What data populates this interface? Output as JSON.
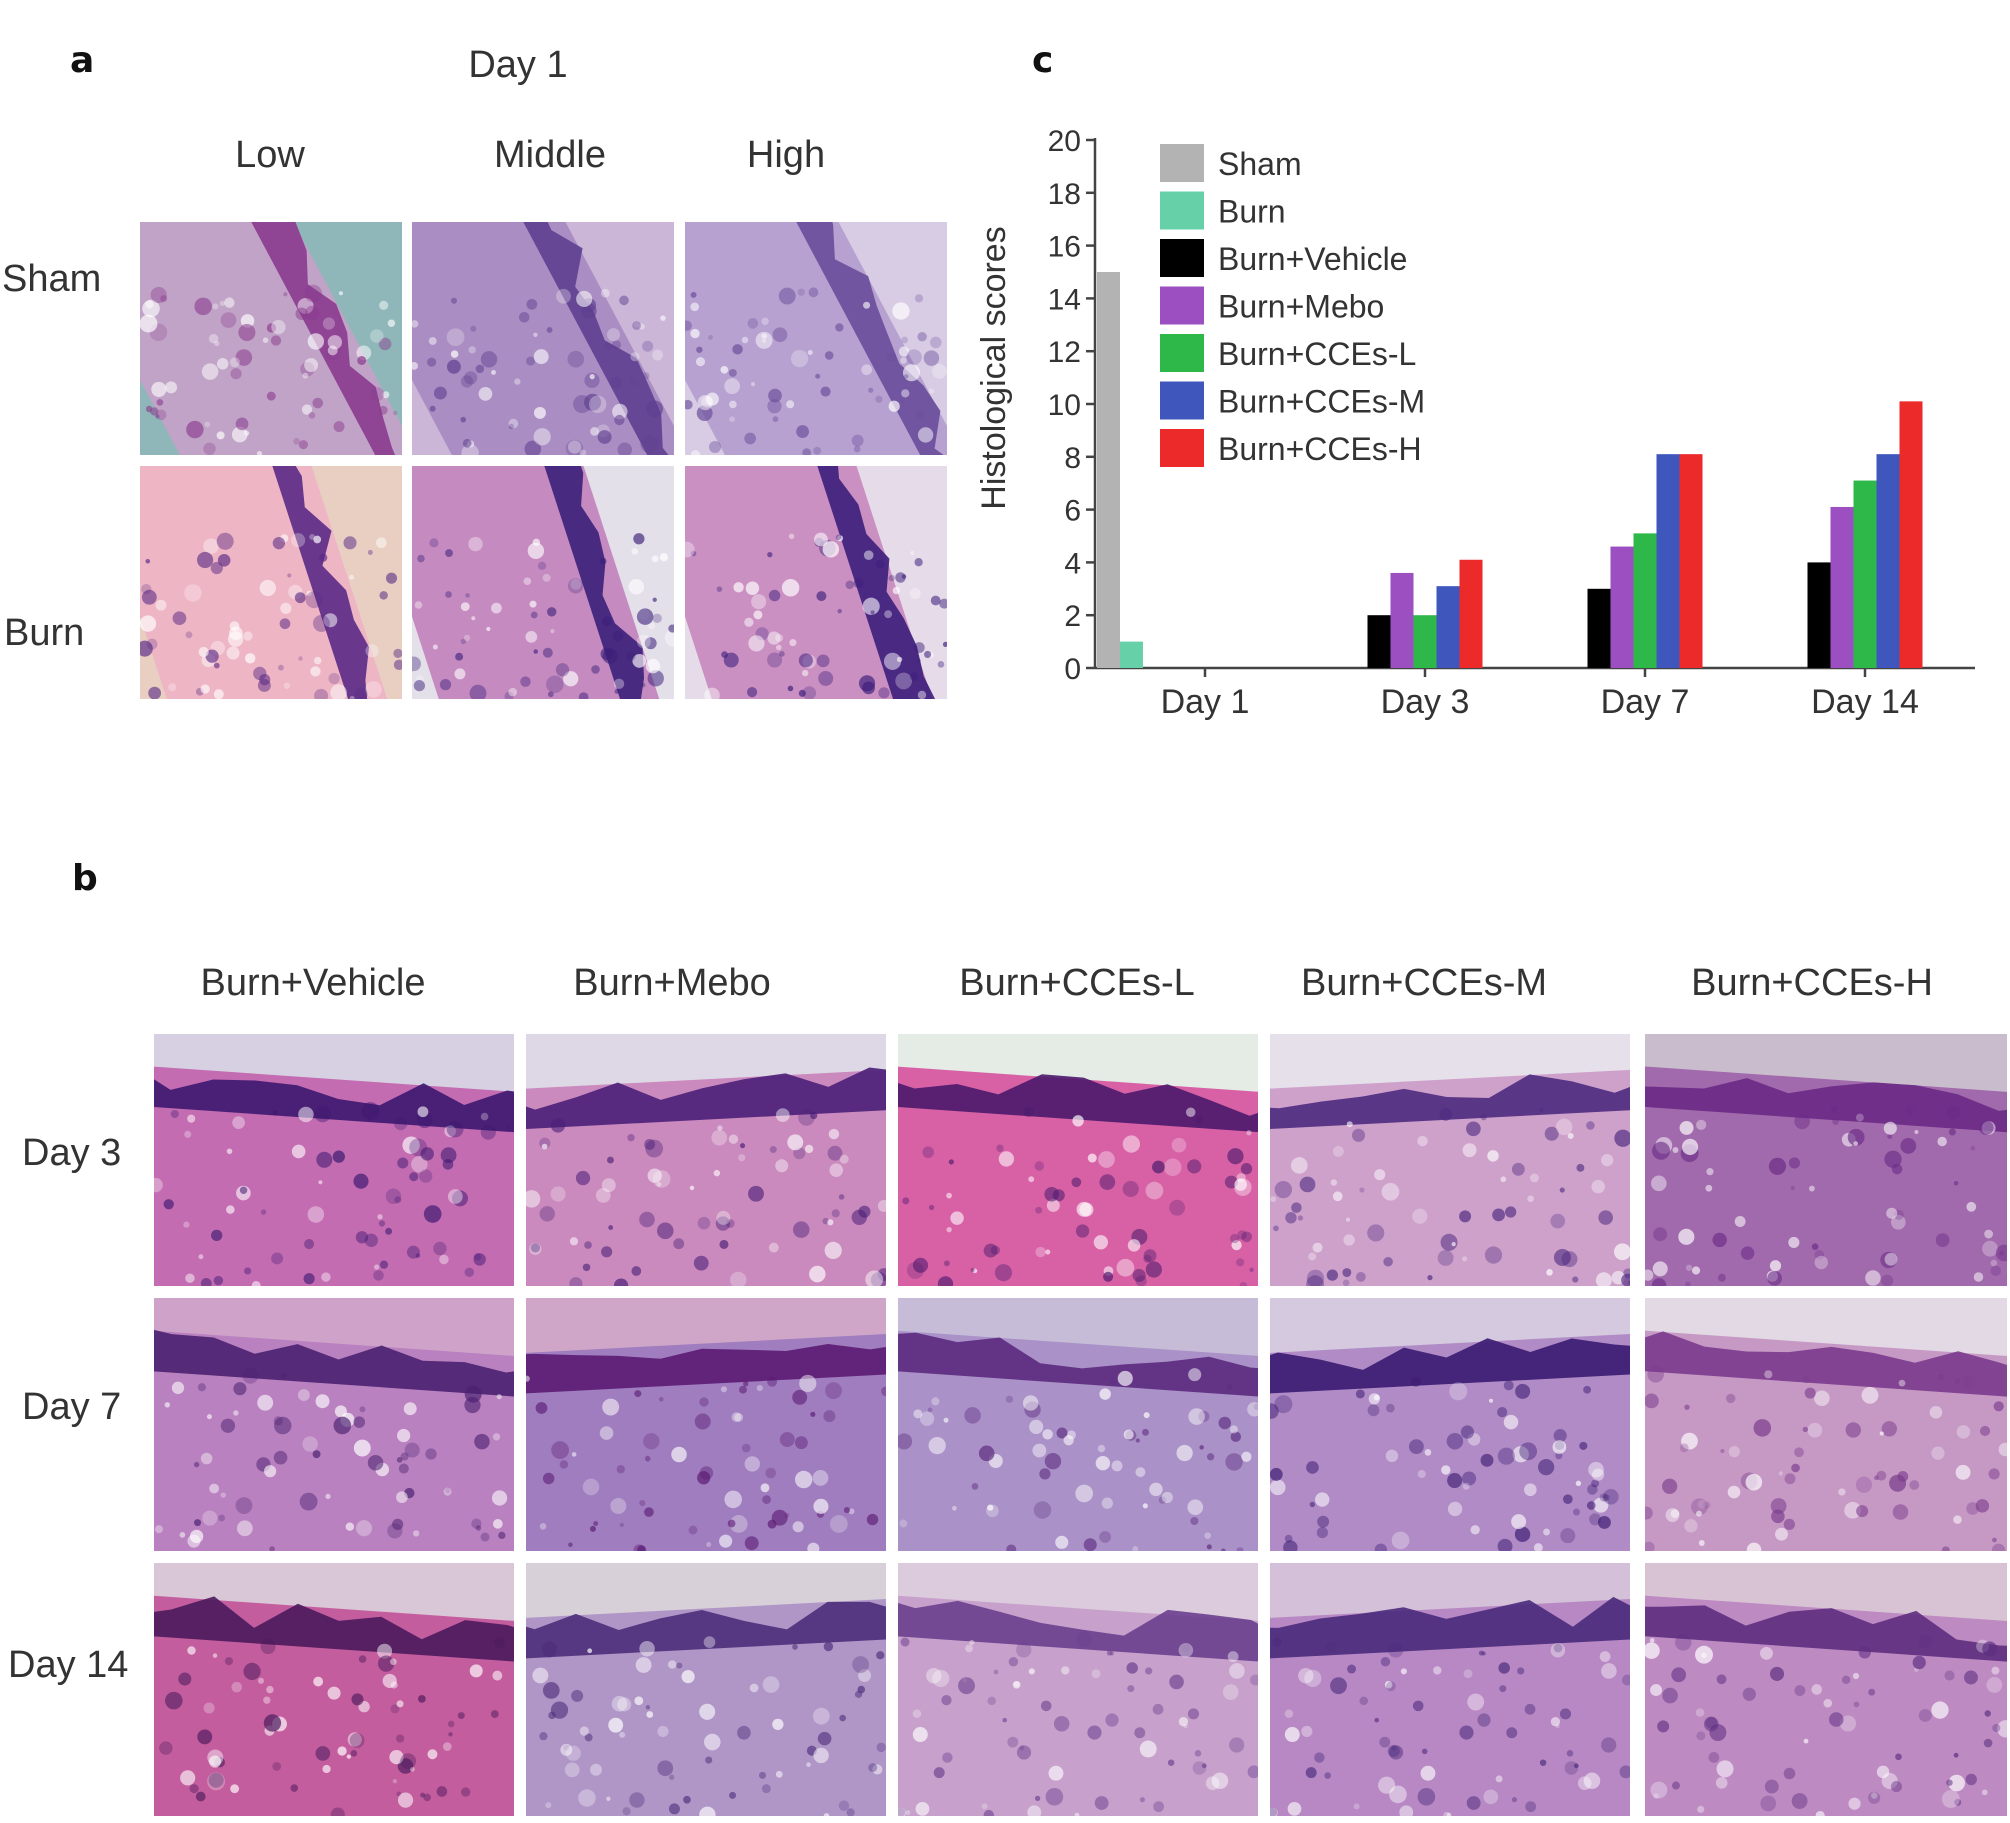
{
  "panels": {
    "a": {
      "letter": "a",
      "heading": "Day 1",
      "columns": [
        "Low",
        "Middle",
        "High"
      ],
      "rows": [
        "Sham",
        "Burn"
      ]
    },
    "b": {
      "letter": "b",
      "columns": [
        "Burn+Vehicle",
        "Burn+Mebo",
        "Burn+CCEs-L",
        "Burn+CCEs-M",
        "Burn+CCEs-H"
      ],
      "rows": [
        "Day 3",
        "Day 7",
        "Day 14"
      ]
    },
    "c": {
      "letter": "c"
    }
  },
  "chart_data": {
    "type": "bar",
    "title": "",
    "xlabel": "",
    "ylabel": "Histological scores",
    "ylim": [
      0,
      20
    ],
    "yticks": [
      "0",
      "2",
      "4",
      "6",
      "8",
      "10",
      "12",
      "14",
      "16",
      "18",
      "20"
    ],
    "categories": [
      "Day 1",
      "Day 3",
      "Day 7",
      "Day 14"
    ],
    "grid": false,
    "legend_position": "top-left",
    "series": [
      {
        "name": "Sham",
        "color": "#b3b3b3",
        "values": [
          15,
          0,
          0,
          0
        ]
      },
      {
        "name": "Burn",
        "color": "#66d1a8",
        "values": [
          1,
          0,
          0,
          0
        ]
      },
      {
        "name": "Burn+Vehicle",
        "color": "#000000",
        "values": [
          0,
          2,
          3,
          4
        ]
      },
      {
        "name": "Burn+Mebo",
        "color": "#9b4fc0",
        "values": [
          0,
          3.6,
          4.6,
          6.1
        ]
      },
      {
        "name": "Burn+CCEs-L",
        "color": "#2fb84a",
        "values": [
          0,
          2,
          5.1,
          7.1
        ]
      },
      {
        "name": "Burn+CCEs-M",
        "color": "#3f57bd",
        "values": [
          0,
          3.1,
          8.1,
          8.1
        ]
      },
      {
        "name": "Burn+CCEs-H",
        "color": "#ec2a2a",
        "values": [
          0,
          4.1,
          8.1,
          10.1
        ]
      }
    ]
  }
}
